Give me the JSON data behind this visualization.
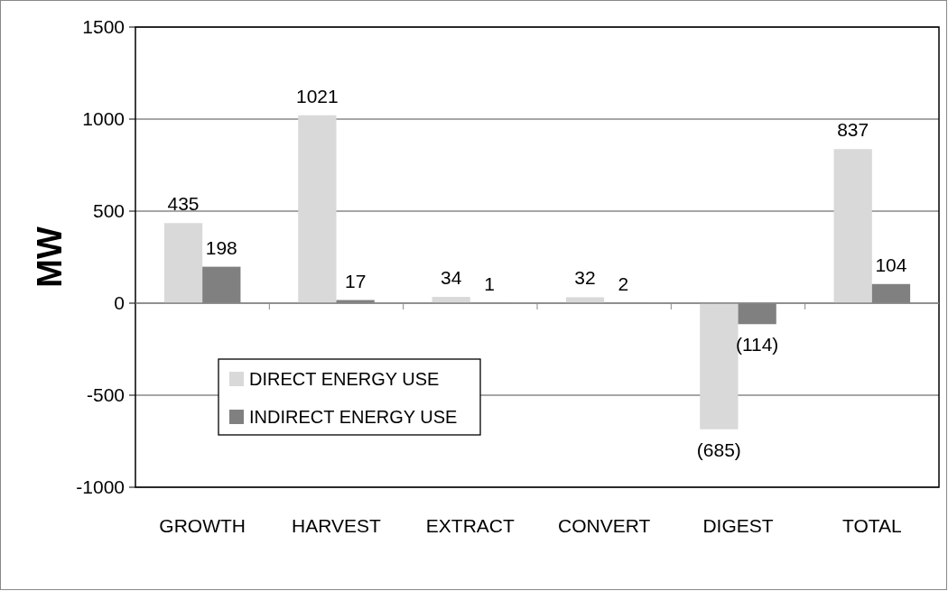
{
  "chart_data": {
    "type": "bar",
    "ylabel": "MW",
    "categories": [
      "GROWTH",
      "HARVEST",
      "EXTRACT",
      "CONVERT",
      "DIGEST",
      "TOTAL"
    ],
    "series": [
      {
        "name": "DIRECT ENERGY USE",
        "color": "#d9d9d9",
        "values": [
          435,
          1021,
          34,
          32,
          -685,
          837
        ],
        "value_labels": [
          "435",
          "1021",
          "34",
          "32",
          "(685)",
          "837"
        ]
      },
      {
        "name": "INDIRECT ENERGY USE",
        "color": "#808080",
        "values": [
          198,
          17,
          1,
          2,
          -114,
          104
        ],
        "value_labels": [
          "198",
          "17",
          "1",
          "2",
          "(114)",
          "104"
        ]
      }
    ],
    "ylim": [
      -1000,
      1500
    ],
    "yticks": [
      -1000,
      -500,
      0,
      500,
      1000,
      1500
    ],
    "grid": "y",
    "legend": "left"
  }
}
